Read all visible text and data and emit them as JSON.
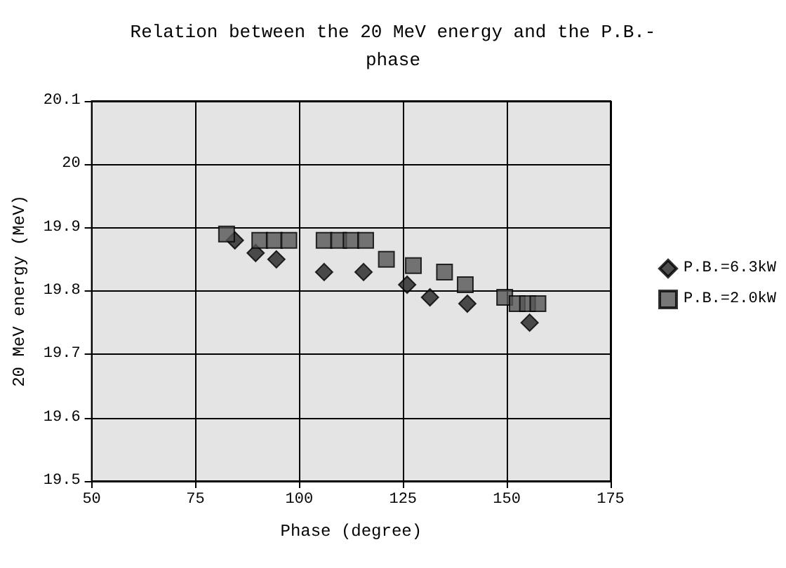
{
  "chart_data": {
    "type": "scatter",
    "title": "Relation between the 20 MeV energy and the P.B.-\nphase",
    "xlabel": "Phase (degree)",
    "ylabel": "20 MeV energy (MeV)",
    "xlim": [
      50,
      175
    ],
    "xticks": [
      50,
      75,
      100,
      125,
      150,
      175
    ],
    "ylim": [
      19.5,
      20.1
    ],
    "yticks": [
      {
        "value": 19.5,
        "label": "19.5"
      },
      {
        "value": 19.6,
        "label": "19.6"
      },
      {
        "value": 19.7,
        "label": "19.7"
      },
      {
        "value": 19.8,
        "label": "19.8"
      },
      {
        "value": 19.9,
        "label": "19.9"
      },
      {
        "value": 20,
        "label": "20"
      },
      {
        "value": 20.1,
        "label": "20.1"
      }
    ],
    "grid": true,
    "legend": "right",
    "series": [
      {
        "name": "P.B.=6.3kW",
        "color": "#222222",
        "marker": "diamond",
        "x": [
          84.5,
          89.5,
          94.5,
          106,
          115.5,
          126,
          131.5,
          140.5,
          155.5
        ],
        "values": [
          19.88,
          19.86,
          19.85,
          19.83,
          19.83,
          19.81,
          19.79,
          19.78,
          19.75
        ]
      },
      {
        "name": "P.B.=2.0kW",
        "color": "#555555",
        "marker": "square",
        "x": [
          82.5,
          90.5,
          94,
          97.5,
          106,
          109.5,
          112.5,
          116,
          121,
          127.5,
          135,
          140,
          149.5,
          152.5,
          155,
          157.5
        ],
        "values": [
          19.89,
          19.88,
          19.88,
          19.88,
          19.88,
          19.88,
          19.88,
          19.88,
          19.85,
          19.84,
          19.83,
          19.81,
          19.79,
          19.78,
          19.78,
          19.78
        ]
      }
    ]
  }
}
